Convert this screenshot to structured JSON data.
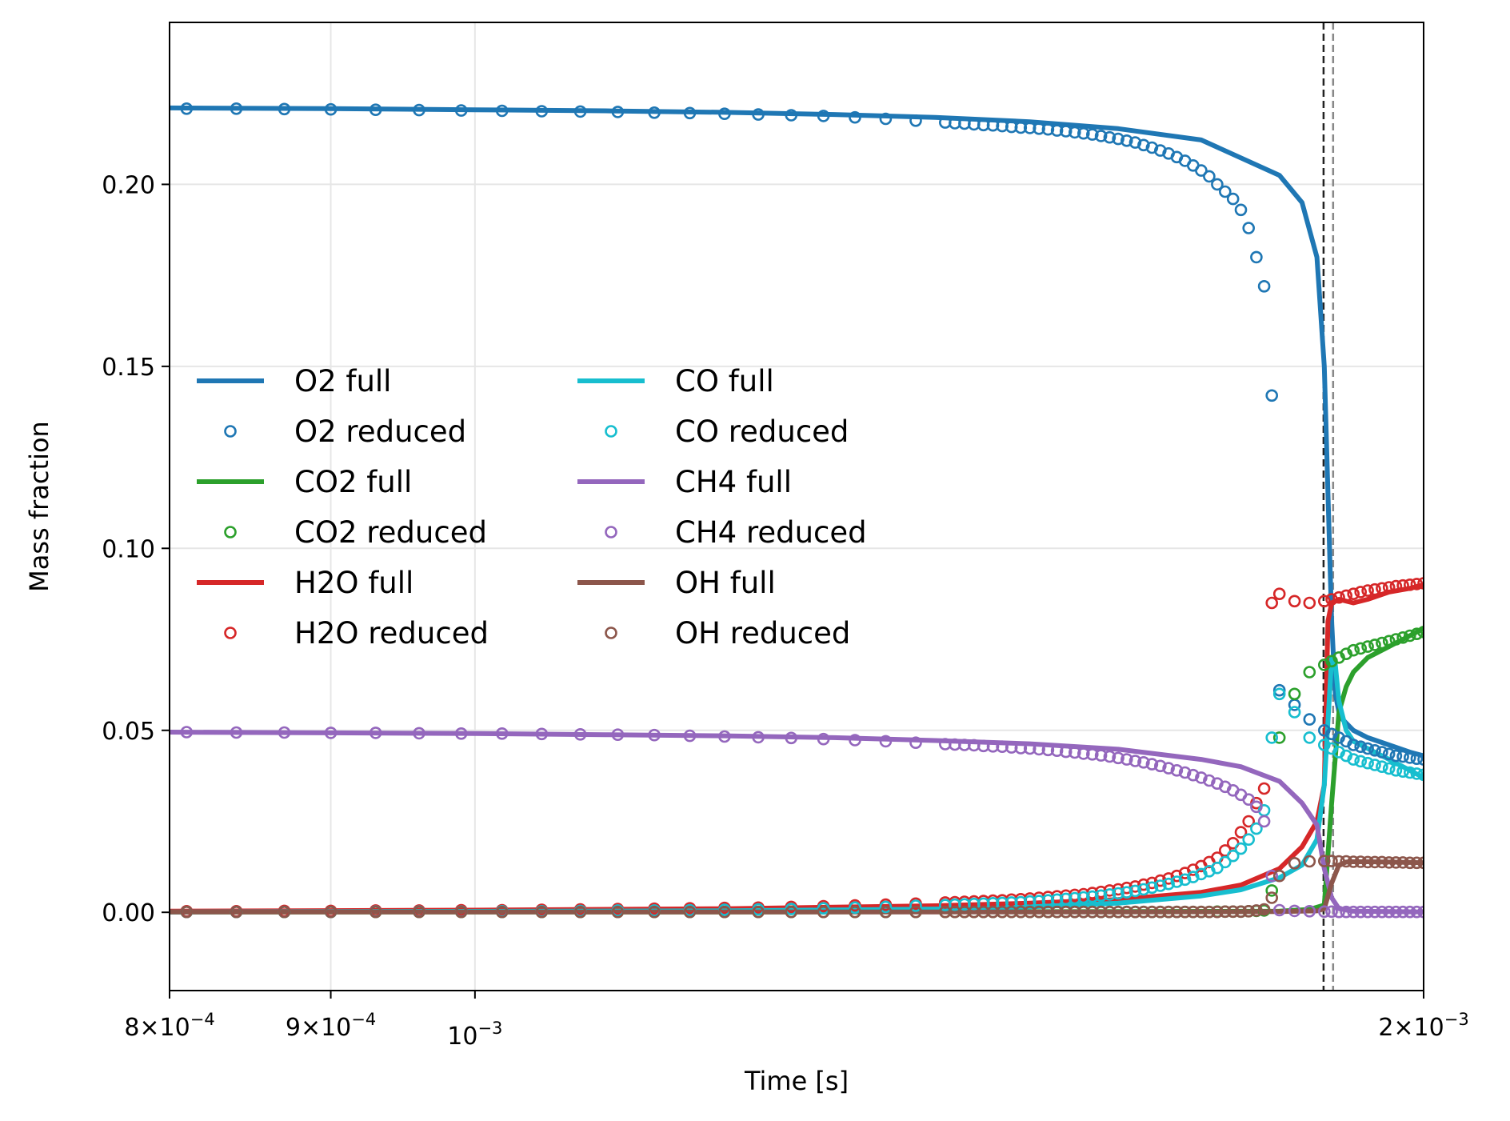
{
  "chart_data": {
    "type": "line",
    "title": "",
    "xlabel": "Time [s]",
    "ylabel": "Mass fraction",
    "xscale": "log",
    "xlim": [
      0.0008,
      0.002
    ],
    "ylim": [
      -0.0215,
      0.2445
    ],
    "grid": true,
    "legend_position": "center-left",
    "legend_columns": 2,
    "xticks": [
      {
        "value": 0.0008,
        "mantissa": "8",
        "exponent": "−4"
      },
      {
        "value": 0.0009,
        "mantissa": "9",
        "exponent": "−4"
      },
      {
        "value": 0.001,
        "mantissa": "",
        "exponent": "−3"
      },
      {
        "value": 0.002,
        "mantissa": "2",
        "exponent": "−3"
      }
    ],
    "yticks": [
      {
        "value": 0.0,
        "label": "0.00"
      },
      {
        "value": 0.05,
        "label": "0.05"
      },
      {
        "value": 0.1,
        "label": "0.10"
      },
      {
        "value": 0.15,
        "label": "0.15"
      },
      {
        "value": 0.2,
        "label": "0.20"
      }
    ],
    "vlines": [
      {
        "x": 0.001859,
        "color": "#222222",
        "style": "dashed"
      },
      {
        "x": 0.001872,
        "color": "#888888",
        "style": "dashed"
      }
    ],
    "marker_times": [
      0.00081,
      0.00084,
      0.00087,
      0.0009,
      0.00093,
      0.00096,
      0.00099,
      0.00102,
      0.00105,
      0.00108,
      0.00111,
      0.00114,
      0.00117,
      0.0012,
      0.00123,
      0.00126,
      0.00129,
      0.00132,
      0.00135,
      0.00138,
      0.00141,
      0.00142,
      0.00143,
      0.00144,
      0.00145,
      0.00146,
      0.00147,
      0.00148,
      0.00149,
      0.0015,
      0.00151,
      0.00152,
      0.00153,
      0.00154,
      0.00155,
      0.00156,
      0.00157,
      0.00158,
      0.00159,
      0.0016,
      0.00161,
      0.00162,
      0.00163,
      0.00164,
      0.00165,
      0.00166,
      0.00167,
      0.00168,
      0.00169,
      0.0017,
      0.00171,
      0.00172,
      0.00173,
      0.00174,
      0.00175,
      0.00176,
      0.00177,
      0.00178,
      0.00179,
      0.0018,
      0.00182,
      0.00184,
      0.00186,
      0.00187,
      0.00188,
      0.00189,
      0.0019,
      0.00191,
      0.00192,
      0.00193,
      0.00194,
      0.00195,
      0.00196,
      0.00197,
      0.00198,
      0.00199,
      0.002
    ],
    "series": [
      {
        "name": "O2",
        "color": "#1f77b4",
        "full_x": [
          0.0008,
          0.0009,
          0.001,
          0.0011,
          0.0012,
          0.0013,
          0.0014,
          0.0015,
          0.0016,
          0.0017,
          0.0018,
          0.00183,
          0.00185,
          0.00186,
          0.00187,
          0.001875,
          0.00188,
          0.001885,
          0.00189,
          0.0019,
          0.00192,
          0.00195,
          0.00198,
          0.002
        ],
        "full_y": [
          0.221,
          0.2208,
          0.2205,
          0.2202,
          0.2198,
          0.2192,
          0.2184,
          0.2172,
          0.2153,
          0.2122,
          0.2025,
          0.195,
          0.18,
          0.15,
          0.08,
          0.06,
          0.055,
          0.053,
          0.052,
          0.05,
          0.048,
          0.046,
          0.044,
          0.043
        ],
        "reduced_y": [
          0.2208,
          0.2208,
          0.2207,
          0.2206,
          0.2205,
          0.2204,
          0.2203,
          0.2202,
          0.2201,
          0.22,
          0.2199,
          0.2197,
          0.2196,
          0.2194,
          0.2192,
          0.219,
          0.2188,
          0.2184,
          0.218,
          0.2175,
          0.217,
          0.2168,
          0.2167,
          0.2165,
          0.2163,
          0.2162,
          0.216,
          0.2158,
          0.2156,
          0.2155,
          0.2153,
          0.2151,
          0.2148,
          0.2146,
          0.2143,
          0.214,
          0.2137,
          0.2133,
          0.2129,
          0.2125,
          0.212,
          0.2115,
          0.2108,
          0.2101,
          0.2093,
          0.2085,
          0.2075,
          0.2065,
          0.2052,
          0.2038,
          0.2022,
          0.2,
          0.198,
          0.196,
          0.193,
          0.188,
          0.18,
          0.172,
          0.142,
          0.061,
          0.057,
          0.053,
          0.05,
          0.049,
          0.048,
          0.047,
          0.046,
          0.0455,
          0.045,
          0.0445,
          0.044,
          0.0435,
          0.043,
          0.0428,
          0.0425,
          0.0422,
          0.042
        ]
      },
      {
        "name": "CO2",
        "color": "#2ca02c",
        "full_x": [
          0.0008,
          0.0012,
          0.0016,
          0.0018,
          0.00184,
          0.00186,
          0.00187,
          0.00188,
          0.00189,
          0.0019,
          0.00192,
          0.00195,
          0.00198,
          0.002
        ],
        "full_y": [
          0.0001,
          0.0001,
          0.0002,
          0.0003,
          0.0008,
          0.002,
          0.03,
          0.055,
          0.062,
          0.066,
          0.07,
          0.073,
          0.076,
          0.078
        ],
        "reduced_y": [
          0.0001,
          0.0001,
          0.0001,
          0.0001,
          0.0001,
          0.0001,
          0.0001,
          0.0001,
          0.0001,
          0.0001,
          0.0001,
          0.0001,
          0.0001,
          0.0001,
          0.0001,
          0.0001,
          0.0001,
          0.0001,
          0.0001,
          0.0001,
          0.0001,
          0.0001,
          0.0001,
          0.0001,
          0.0001,
          0.0001,
          0.0001,
          0.0001,
          0.0001,
          0.0001,
          0.0001,
          0.0001,
          0.0001,
          0.0001,
          0.0001,
          0.0001,
          0.0001,
          0.0001,
          0.0001,
          0.0001,
          0.0001,
          0.0001,
          0.0001,
          0.0001,
          0.0001,
          0.0001,
          0.0001,
          0.0001,
          0.0001,
          0.0001,
          0.0001,
          0.0002,
          0.0002,
          0.0002,
          0.0002,
          0.0003,
          0.0004,
          0.0005,
          0.006,
          0.048,
          0.06,
          0.066,
          0.068,
          0.069,
          0.07,
          0.071,
          0.072,
          0.0725,
          0.073,
          0.0735,
          0.074,
          0.0745,
          0.075,
          0.0755,
          0.076,
          0.0765,
          0.077
        ]
      },
      {
        "name": "H2O",
        "color": "#d62728",
        "full_x": [
          0.0008,
          0.001,
          0.0012,
          0.0014,
          0.0015,
          0.0016,
          0.0017,
          0.00175,
          0.0018,
          0.00183,
          0.00185,
          0.00186,
          0.001865,
          0.00187,
          0.00188,
          0.0019,
          0.00192,
          0.00195,
          0.00198,
          0.002
        ],
        "full_y": [
          0.0003,
          0.0006,
          0.001,
          0.0018,
          0.0025,
          0.0035,
          0.0055,
          0.0075,
          0.012,
          0.018,
          0.025,
          0.035,
          0.08,
          0.085,
          0.086,
          0.085,
          0.086,
          0.088,
          0.089,
          0.09
        ],
        "reduced_y": [
          0.0003,
          0.0003,
          0.0004,
          0.0004,
          0.0005,
          0.0005,
          0.0006,
          0.0006,
          0.0007,
          0.0008,
          0.0009,
          0.001,
          0.0011,
          0.0012,
          0.0013,
          0.0015,
          0.0017,
          0.0019,
          0.0021,
          0.0024,
          0.0027,
          0.0028,
          0.0029,
          0.003,
          0.0031,
          0.0032,
          0.0033,
          0.0035,
          0.0036,
          0.0038,
          0.004,
          0.0042,
          0.0044,
          0.0046,
          0.0048,
          0.005,
          0.0053,
          0.0056,
          0.006,
          0.0063,
          0.0067,
          0.0071,
          0.0076,
          0.0081,
          0.0087,
          0.0093,
          0.01,
          0.0108,
          0.0117,
          0.0127,
          0.0138,
          0.015,
          0.017,
          0.019,
          0.022,
          0.025,
          0.03,
          0.034,
          0.085,
          0.0875,
          0.0855,
          0.085,
          0.0855,
          0.086,
          0.0865,
          0.087,
          0.0875,
          0.088,
          0.0884,
          0.0887,
          0.089,
          0.0893,
          0.0896,
          0.0898,
          0.09,
          0.0902,
          0.0904
        ]
      },
      {
        "name": "CO",
        "color": "#17becf",
        "full_x": [
          0.0008,
          0.0012,
          0.0014,
          0.0015,
          0.0016,
          0.0017,
          0.00175,
          0.0018,
          0.00183,
          0.00185,
          0.00186,
          0.00187,
          0.001875,
          0.00188,
          0.00189,
          0.0019,
          0.00192,
          0.00195,
          0.00198,
          0.002
        ],
        "full_y": [
          0.0001,
          0.0004,
          0.0009,
          0.0015,
          0.0025,
          0.0045,
          0.0062,
          0.0095,
          0.013,
          0.02,
          0.035,
          0.07,
          0.068,
          0.058,
          0.05,
          0.047,
          0.045,
          0.042,
          0.039,
          0.037
        ],
        "reduced_y": [
          0.0001,
          0.0001,
          0.0001,
          0.0001,
          0.0002,
          0.0002,
          0.0002,
          0.0003,
          0.0003,
          0.0004,
          0.0005,
          0.0005,
          0.0006,
          0.0007,
          0.0008,
          0.0009,
          0.0011,
          0.0013,
          0.0015,
          0.0018,
          0.002,
          0.0021,
          0.0022,
          0.0023,
          0.0024,
          0.0025,
          0.0026,
          0.0027,
          0.0028,
          0.003,
          0.0031,
          0.0033,
          0.0035,
          0.0037,
          0.0039,
          0.0041,
          0.0043,
          0.0046,
          0.0049,
          0.0052,
          0.0055,
          0.0059,
          0.0063,
          0.0068,
          0.0073,
          0.0078,
          0.0084,
          0.009,
          0.0097,
          0.0105,
          0.0113,
          0.0122,
          0.0138,
          0.0155,
          0.0175,
          0.02,
          0.023,
          0.028,
          0.048,
          0.06,
          0.055,
          0.048,
          0.046,
          0.045,
          0.044,
          0.043,
          0.042,
          0.0415,
          0.041,
          0.0405,
          0.04,
          0.0395,
          0.039,
          0.0387,
          0.0384,
          0.0381,
          0.0378
        ]
      },
      {
        "name": "CH4",
        "color": "#9467bd",
        "full_x": [
          0.0008,
          0.0009,
          0.001,
          0.0011,
          0.0012,
          0.0013,
          0.0014,
          0.0015,
          0.0016,
          0.0017,
          0.00175,
          0.0018,
          0.00183,
          0.00185,
          0.00186,
          0.00187,
          0.00188,
          0.0019,
          0.002
        ],
        "full_y": [
          0.0495,
          0.0493,
          0.0491,
          0.0488,
          0.0485,
          0.048,
          0.0472,
          0.0463,
          0.0448,
          0.042,
          0.04,
          0.036,
          0.03,
          0.024,
          0.012,
          0.004,
          0.001,
          0.0003,
          0.0001
        ],
        "reduced_y": [
          0.0495,
          0.0494,
          0.0494,
          0.0493,
          0.0493,
          0.0492,
          0.0491,
          0.0491,
          0.049,
          0.0489,
          0.0488,
          0.0487,
          0.0485,
          0.0483,
          0.0481,
          0.0479,
          0.0476,
          0.0473,
          0.047,
          0.0466,
          0.0462,
          0.0461,
          0.046,
          0.0459,
          0.0457,
          0.0456,
          0.0455,
          0.0453,
          0.0451,
          0.045,
          0.0448,
          0.0446,
          0.0444,
          0.0441,
          0.0439,
          0.0436,
          0.0434,
          0.0431,
          0.0428,
          0.0424,
          0.042,
          0.0416,
          0.0412,
          0.0407,
          0.0402,
          0.0396,
          0.039,
          0.0384,
          0.0377,
          0.037,
          0.0362,
          0.0354,
          0.0345,
          0.0335,
          0.0323,
          0.031,
          0.029,
          0.025,
          0.01,
          0.0006,
          0.0004,
          0.0003,
          0.0002,
          0.0002,
          0.0001,
          0.0001,
          0.0001,
          0.0001,
          0.0001,
          0.0001,
          0.0001,
          0.0001,
          0.0001,
          0.0001,
          0.0001,
          0.0001,
          0.0001
        ]
      },
      {
        "name": "OH",
        "color": "#8c564b",
        "full_x": [
          0.0008,
          0.0016,
          0.0018,
          0.00185,
          0.00186,
          0.00187,
          0.00188,
          0.00189,
          0.0019,
          0.00192,
          0.00195,
          0.00198,
          0.002
        ],
        "full_y": [
          0.0001,
          0.0001,
          0.0002,
          0.0004,
          0.001,
          0.008,
          0.013,
          0.0138,
          0.0139,
          0.0139,
          0.0138,
          0.0137,
          0.0136
        ],
        "reduced_y": [
          0.0001,
          0.0001,
          0.0001,
          0.0001,
          0.0001,
          0.0001,
          0.0001,
          0.0001,
          0.0001,
          0.0001,
          0.0001,
          0.0001,
          0.0001,
          0.0001,
          0.0001,
          0.0001,
          0.0001,
          0.0001,
          0.0001,
          0.0001,
          0.0001,
          0.0001,
          0.0001,
          0.0001,
          0.0001,
          0.0001,
          0.0001,
          0.0001,
          0.0001,
          0.0001,
          0.0001,
          0.0001,
          0.0001,
          0.0001,
          0.0001,
          0.0001,
          0.0001,
          0.0001,
          0.0001,
          0.0001,
          0.0001,
          0.0001,
          0.0001,
          0.0001,
          0.0001,
          0.0001,
          0.0001,
          0.0001,
          0.0001,
          0.0001,
          0.0001,
          0.0001,
          0.0002,
          0.0002,
          0.0002,
          0.0003,
          0.0005,
          0.0008,
          0.004,
          0.01,
          0.0135,
          0.014,
          0.0141,
          0.0141,
          0.014,
          0.014,
          0.0139,
          0.0139,
          0.0138,
          0.0138,
          0.0138,
          0.0137,
          0.0137,
          0.0137,
          0.0136,
          0.0136,
          0.0136
        ]
      }
    ],
    "legend": [
      {
        "label": "O2 full",
        "series": "O2",
        "kind": "line"
      },
      {
        "label": "O2 reduced",
        "series": "O2",
        "kind": "marker"
      },
      {
        "label": "CO2 full",
        "series": "CO2",
        "kind": "line"
      },
      {
        "label": "CO2 reduced",
        "series": "CO2",
        "kind": "marker"
      },
      {
        "label": "H2O full",
        "series": "H2O",
        "kind": "line"
      },
      {
        "label": "H2O reduced",
        "series": "H2O",
        "kind": "marker"
      },
      {
        "label": "CO full",
        "series": "CO",
        "kind": "line"
      },
      {
        "label": "CO reduced",
        "series": "CO",
        "kind": "marker"
      },
      {
        "label": "CH4 full",
        "series": "CH4",
        "kind": "line"
      },
      {
        "label": "CH4 reduced",
        "series": "CH4",
        "kind": "marker"
      },
      {
        "label": "OH full",
        "series": "OH",
        "kind": "line"
      },
      {
        "label": "OH reduced",
        "series": "OH",
        "kind": "marker"
      }
    ]
  }
}
